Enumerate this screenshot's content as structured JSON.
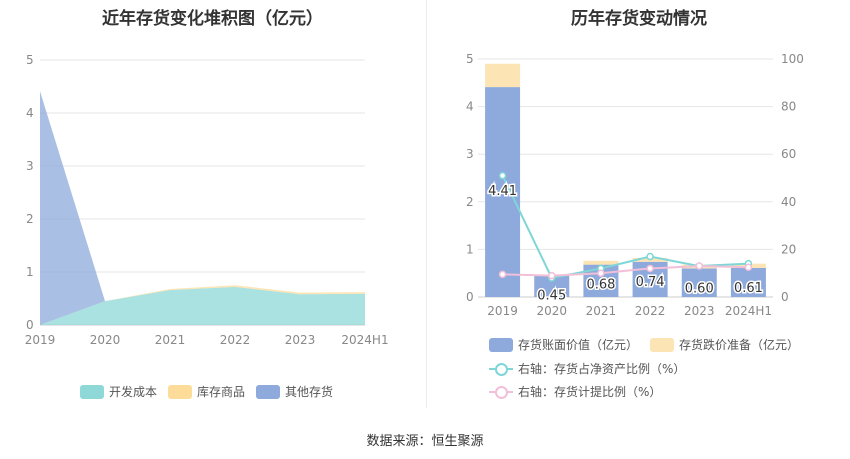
{
  "left_panel": {
    "title": "近年存货变化堆积图（亿元）"
  },
  "right_panel": {
    "title": "历年存货变动情况"
  },
  "source": "数据来源：恒生聚源",
  "colors": {
    "develop_cost": "#8ed8d8",
    "inventory_goods": "#fddc9a",
    "other_inventory": "#8ea9db",
    "bar_value": "#8ea9db",
    "bar_reserve": "#fde4b5",
    "line_ratio": "#7fd6d6",
    "line_provision": "#f2bfd8"
  },
  "chart_data": [
    {
      "type": "area",
      "stacked": true,
      "categories": [
        "2019",
        "2020",
        "2021",
        "2022",
        "2023",
        "2024H1"
      ],
      "ylim": [
        0,
        5
      ],
      "yticks": [
        "0",
        "1",
        "2",
        "3",
        "4",
        "5"
      ],
      "series": [
        {
          "name": "开发成本",
          "values": [
            0.0,
            0.45,
            0.66,
            0.72,
            0.58,
            0.59
          ]
        },
        {
          "name": "库存商品",
          "values": [
            0.0,
            0.0,
            0.02,
            0.03,
            0.03,
            0.03
          ]
        },
        {
          "name": "其他存货",
          "values": [
            4.41,
            0.0,
            0.0,
            0.0,
            0.0,
            0.0
          ]
        }
      ],
      "legend": "bottom",
      "grid": true
    },
    {
      "type": "bar",
      "stacked": true,
      "categories": [
        "2019",
        "2020",
        "2021",
        "2022",
        "2023",
        "2024H1"
      ],
      "ylim": [
        0,
        5
      ],
      "yticks": [
        "0",
        "1",
        "2",
        "3",
        "4",
        "5"
      ],
      "y2lim": [
        0,
        100
      ],
      "y2ticks": [
        "0",
        "20",
        "40",
        "60",
        "80",
        "100"
      ],
      "series": [
        {
          "name": "存货账面价值（亿元）",
          "values": [
            4.41,
            0.45,
            0.68,
            0.74,
            0.6,
            0.61
          ],
          "labels": [
            "4.41",
            "0.45",
            "0.68",
            "0.74",
            "0.60",
            "0.61"
          ]
        },
        {
          "name": "存货跌价准备（亿元）",
          "values": [
            0.49,
            0.02,
            0.08,
            0.08,
            0.08,
            0.09
          ]
        }
      ],
      "lines": [
        {
          "name": "右轴：存货占净资产比例（%）",
          "axis": "right",
          "values": [
            51,
            8,
            12,
            17,
            13,
            14
          ]
        },
        {
          "name": "右轴：存货计提比例（%）",
          "axis": "right",
          "values": [
            9.5,
            9,
            10,
            12,
            13,
            12.5
          ]
        }
      ],
      "legend": "bottom",
      "grid": true
    }
  ]
}
